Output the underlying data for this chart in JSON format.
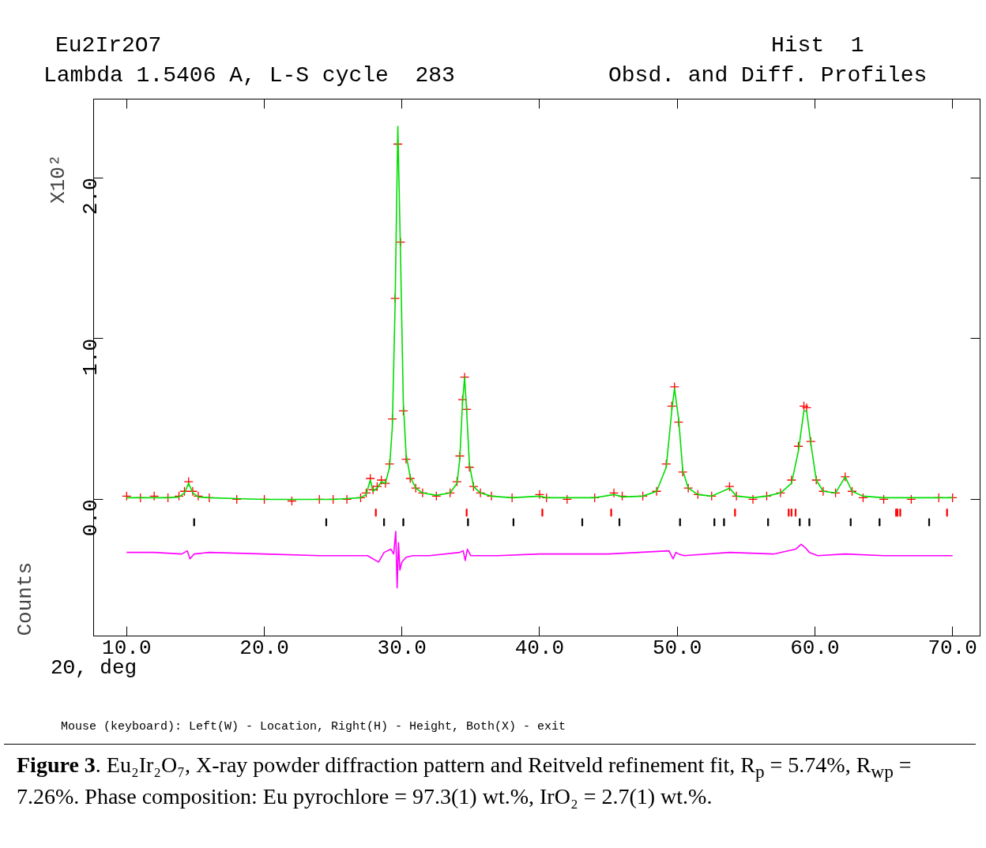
{
  "chart_data": {
    "type": "scatter",
    "title": "Eu2Ir2O7",
    "subtitle": "Lambda 1.5406 A, L-S cycle  283",
    "xlabel": "2Θ, deg",
    "ylabel": "Counts",
    "xlim": [
      7.6,
      72.0
    ],
    "ylim": [
      -0.85,
      2.49
    ],
    "xticks": [
      {
        "value": 10,
        "label": "10.0"
      },
      {
        "value": 20,
        "label": "20.0"
      },
      {
        "value": 30,
        "label": "30.0"
      },
      {
        "value": 40,
        "label": "40.0"
      },
      {
        "value": 50,
        "label": "50.0"
      },
      {
        "value": 60,
        "label": "60.0"
      },
      {
        "value": 70,
        "label": "70.0"
      }
    ],
    "yticks": [
      {
        "value": 0,
        "label": "0.0"
      },
      {
        "value": 1,
        "label": "1.0"
      },
      {
        "value": 2,
        "label": "2.0"
      }
    ],
    "grid": false,
    "x": [
      10.0,
      11,
      12,
      13,
      13.8,
      14.2,
      14.5,
      14.8,
      15.2,
      16,
      18,
      20,
      22,
      24,
      25,
      26,
      27,
      27.4,
      27.7,
      27.9,
      28.2,
      28.5,
      28.8,
      29.1,
      29.3,
      29.5,
      29.7,
      29.9,
      30.1,
      30.3,
      30.6,
      31.0,
      31.5,
      32.5,
      33.5,
      34.0,
      34.2,
      34.4,
      34.55,
      34.7,
      34.9,
      35.2,
      35.7,
      36.5,
      38,
      40,
      40.5,
      42,
      44,
      45.4,
      46,
      47.5,
      48.5,
      49.2,
      49.6,
      49.8,
      50.1,
      50.4,
      50.8,
      51.5,
      52.5,
      53.8,
      54.3,
      55.5,
      56.5,
      57.5,
      58.3,
      58.8,
      59.2,
      59.4,
      59.7,
      60.1,
      60.6,
      61.5,
      62.2,
      62.7,
      63.5,
      65,
      67,
      69,
      70
    ],
    "series": [
      {
        "marker": "cross",
        "color": "#ff0000",
        "values": [
          0.02,
          0.01,
          0.02,
          0.01,
          0.02,
          0.05,
          0.11,
          0.05,
          0.02,
          0.01,
          0.0,
          0.0,
          -0.01,
          0.0,
          0.0,
          0.0,
          0.01,
          0.04,
          0.13,
          0.06,
          0.08,
          0.12,
          0.1,
          0.22,
          0.5,
          1.25,
          2.21,
          1.6,
          0.55,
          0.25,
          0.13,
          0.07,
          0.04,
          0.02,
          0.04,
          0.11,
          0.27,
          0.62,
          0.76,
          0.56,
          0.2,
          0.08,
          0.04,
          0.02,
          0.01,
          0.03,
          0.01,
          0.0,
          0.01,
          0.04,
          0.02,
          0.02,
          0.05,
          0.22,
          0.58,
          0.7,
          0.48,
          0.17,
          0.07,
          0.03,
          0.02,
          0.08,
          0.02,
          0.0,
          0.02,
          0.04,
          0.12,
          0.33,
          0.58,
          0.57,
          0.36,
          0.12,
          0.05,
          0.04,
          0.14,
          0.05,
          0.01,
          0.0,
          0.0,
          0.01,
          0.01
        ]
      },
      {
        "type": "line",
        "color": "#00dd00",
        "values": [
          0.01,
          0.01,
          0.01,
          0.01,
          0.015,
          0.04,
          0.1,
          0.04,
          0.015,
          0.01,
          0.005,
          0.0,
          0.0,
          0.0,
          0.0,
          0.005,
          0.01,
          0.03,
          0.12,
          0.05,
          0.07,
          0.11,
          0.1,
          0.2,
          0.45,
          1.2,
          2.32,
          1.5,
          0.6,
          0.28,
          0.14,
          0.07,
          0.04,
          0.025,
          0.04,
          0.1,
          0.25,
          0.6,
          0.76,
          0.55,
          0.22,
          0.08,
          0.04,
          0.02,
          0.01,
          0.02,
          0.01,
          0.01,
          0.01,
          0.03,
          0.015,
          0.02,
          0.05,
          0.2,
          0.55,
          0.69,
          0.5,
          0.18,
          0.07,
          0.03,
          0.02,
          0.07,
          0.02,
          0.01,
          0.02,
          0.04,
          0.1,
          0.3,
          0.55,
          0.55,
          0.35,
          0.12,
          0.05,
          0.04,
          0.14,
          0.05,
          0.02,
          0.01,
          0.01,
          0.01,
          0.01
        ]
      },
      {
        "type": "line",
        "color": "#ff00ff",
        "x": [
          10.0,
          12,
          14.0,
          14.4,
          14.6,
          14.9,
          16,
          20,
          24,
          27.5,
          28.3,
          28.7,
          29.2,
          29.4,
          29.55,
          29.65,
          29.75,
          29.85,
          30.0,
          30.3,
          30.8,
          32,
          34.2,
          34.45,
          34.6,
          34.75,
          35.0,
          37,
          40,
          45,
          49.4,
          49.7,
          49.9,
          50.1,
          50.5,
          53.8,
          57,
          58.6,
          59.0,
          59.3,
          59.6,
          60.2,
          62.2,
          65,
          70
        ],
        "values": [
          -0.33,
          -0.33,
          -0.34,
          -0.32,
          -0.37,
          -0.34,
          -0.33,
          -0.34,
          -0.35,
          -0.35,
          -0.39,
          -0.33,
          -0.31,
          -0.34,
          -0.2,
          -0.55,
          -0.27,
          -0.44,
          -0.39,
          -0.36,
          -0.35,
          -0.35,
          -0.33,
          -0.32,
          -0.38,
          -0.31,
          -0.35,
          -0.35,
          -0.34,
          -0.34,
          -0.32,
          -0.37,
          -0.33,
          -0.34,
          -0.35,
          -0.33,
          -0.34,
          -0.31,
          -0.28,
          -0.3,
          -0.33,
          -0.35,
          -0.34,
          -0.35,
          -0.35
        ]
      },
      {
        "type": "bar",
        "color": "#ff0000",
        "x": [
          28.1,
          34.7,
          40.2,
          45.2,
          54.2,
          58.1,
          58.3,
          58.6,
          65.9,
          66.0,
          66.2,
          69.6
        ],
        "base": [
          -0.105,
          -0.105,
          -0.105,
          -0.105,
          -0.105,
          -0.105,
          -0.105,
          -0.105,
          -0.105,
          -0.105,
          -0.105,
          -0.105
        ],
        "values": [
          0.045,
          0.045,
          0.045,
          0.045,
          0.045,
          0.045,
          0.045,
          0.045,
          0.045,
          0.045,
          0.045,
          0.045
        ]
      },
      {
        "type": "bar",
        "color": "#000000",
        "x": [
          14.9,
          24.5,
          28.7,
          30.1,
          34.8,
          38.1,
          43.1,
          45.8,
          50.2,
          52.7,
          53.4,
          56.6,
          58.9,
          59.6,
          62.6,
          64.7,
          68.3
        ],
        "base": [
          -0.165,
          -0.165,
          -0.165,
          -0.165,
          -0.165,
          -0.165,
          -0.165,
          -0.165,
          -0.165,
          -0.165,
          -0.165,
          -0.165,
          -0.165,
          -0.165,
          -0.165,
          -0.165,
          -0.165
        ],
        "values": [
          0.045,
          0.045,
          0.045,
          0.045,
          0.045,
          0.045,
          0.045,
          0.045,
          0.045,
          0.045,
          0.045,
          0.045,
          0.045,
          0.045,
          0.045,
          0.045,
          0.045
        ]
      }
    ],
    "annotations": [
      "Hist  1",
      "Obsd. and Diff. Profiles",
      "X10²",
      "Mouse (keyboard): Left(W) - Location, Right(H) - Height, Both(X) - exit",
      "**Figure 3**. Eu₂Ir₂O₇, X-ray powder diffraction pattern and Reitveld refinement fit, R$_{p}$ = 5.74%, R$_{wp}$ =  7.26%. Phase composition: Eu pyrochlore = 97.3(1) wt.%, IrO₂ = 2.7(1) wt.%."
    ]
  }
}
